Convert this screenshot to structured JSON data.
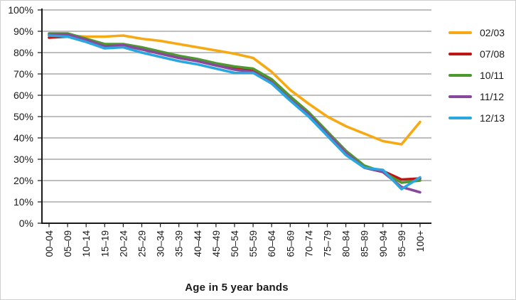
{
  "figure": {
    "xaxis_title": "Age in 5 year bands"
  },
  "chart_data": {
    "type": "line",
    "title": "",
    "xlabel": "Age in 5 year bands",
    "ylabel": "",
    "ylim": [
      0,
      100
    ],
    "ytick_step": 10,
    "ytick_labels": [
      "0%",
      "10%",
      "20%",
      "30%",
      "40%",
      "50%",
      "60%",
      "70%",
      "80%",
      "90%",
      "100%"
    ],
    "grid": true,
    "legend_position": "right",
    "categories": [
      "00–04",
      "05–09",
      "10–14",
      "15–19",
      "20–24",
      "25–29",
      "30–34",
      "35–39",
      "40–44",
      "45–49",
      "50–54",
      "55–59",
      "60–64",
      "65–69",
      "70–74",
      "75–79",
      "80–84",
      "85–89",
      "90–94",
      "95–99",
      "100+"
    ],
    "series": [
      {
        "name": "02/03",
        "color": "#F7A913",
        "values": [
          88,
          88,
          87.5,
          87.5,
          88,
          86.5,
          85.5,
          84,
          82.5,
          81,
          79.5,
          77.5,
          71,
          62.5,
          56,
          50,
          45.5,
          42,
          38.5,
          37,
          47.5
        ]
      },
      {
        "name": "07/08",
        "color": "#BE1515",
        "values": [
          87,
          87.5,
          86,
          83.5,
          83.5,
          81.5,
          79.5,
          77.5,
          76,
          74,
          72.5,
          71.5,
          66.5,
          58.5,
          51.5,
          42.5,
          33.5,
          26.5,
          24.5,
          20.5,
          21
        ]
      },
      {
        "name": "10/11",
        "color": "#4C9A2E",
        "values": [
          89,
          89,
          86.5,
          84,
          84,
          82.5,
          80.5,
          78.5,
          77,
          75,
          73.5,
          72.5,
          67.5,
          59.5,
          52,
          43,
          34,
          27,
          24,
          19,
          20
        ]
      },
      {
        "name": "11/12",
        "color": "#88499C",
        "values": [
          88.5,
          88.5,
          86,
          83,
          83.5,
          81.5,
          79.5,
          77.5,
          76,
          74,
          72,
          71,
          66,
          58,
          51,
          42,
          33,
          26,
          24,
          17,
          14.5
        ]
      },
      {
        "name": "12/13",
        "color": "#2AA7E0",
        "values": [
          88,
          87.5,
          85,
          82,
          82.5,
          80,
          78,
          76,
          74.5,
          72.5,
          70.5,
          70.5,
          65.5,
          57.5,
          50,
          41,
          32,
          26,
          25,
          16,
          21.5
        ]
      }
    ]
  },
  "styles": {
    "grid_color": "#a8a8a8",
    "axis_color": "#1a1a1a",
    "tick_label_color": "#1a1a1a",
    "background": "#ffffff"
  }
}
